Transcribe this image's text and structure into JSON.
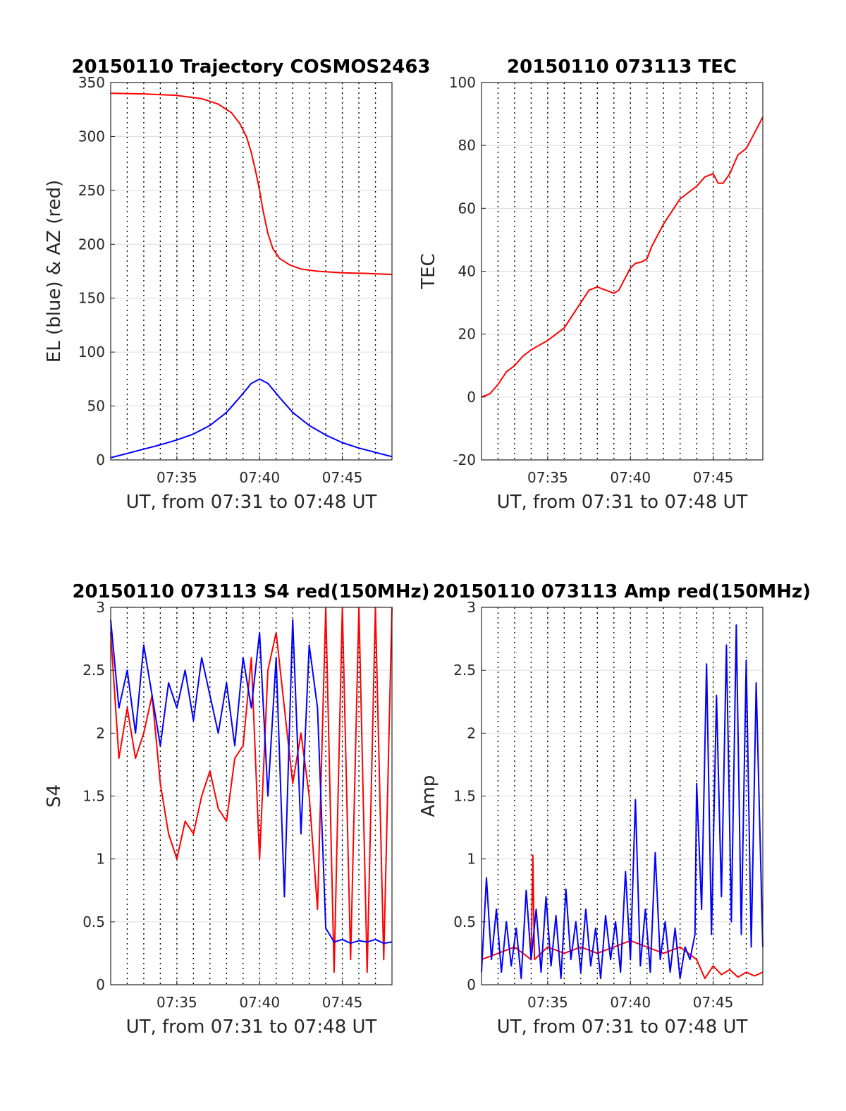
{
  "chart_data": [
    {
      "id": "trajectory",
      "type": "line",
      "title": "20150110 Trajectory COSMOS2463",
      "xlabel": "UT, from 07:31 to 07:48 UT",
      "ylabel": "EL (blue) & AZ (red)",
      "x_unit": "minutes since 07:31 UT",
      "xlim": [
        0,
        17
      ],
      "ylim": [
        0,
        350
      ],
      "yticks": [
        0,
        50,
        100,
        150,
        200,
        250,
        300,
        350
      ],
      "xticks": [
        {
          "x": 4,
          "label": "07:35"
        },
        {
          "x": 9,
          "label": "07:40"
        },
        {
          "x": 14,
          "label": "07:45"
        }
      ],
      "grid": true,
      "series": [
        {
          "color": "#ff0000",
          "x": [
            0,
            2,
            4,
            5.5,
            6.5,
            7.3,
            7.8,
            8.2,
            8.5,
            8.8,
            9.0,
            9.2,
            9.5,
            9.8,
            10.2,
            10.8,
            11.5,
            12.5,
            14,
            15.5,
            17
          ],
          "y": [
            340,
            339.5,
            338,
            335,
            330,
            322,
            312,
            300,
            285,
            265,
            250,
            232,
            210,
            196,
            187,
            181,
            177,
            175,
            173.5,
            173,
            172
          ]
        },
        {
          "color": "#0000ff",
          "x": [
            0,
            1,
            2,
            3,
            4,
            5,
            6,
            7,
            7.8,
            8.5,
            9.0,
            9.5,
            10.2,
            11,
            12,
            13,
            14,
            15,
            16,
            17
          ],
          "y": [
            2,
            6,
            10,
            14,
            18.5,
            24,
            32,
            44,
            58,
            71,
            75,
            71,
            58,
            44,
            32,
            23,
            16,
            11,
            7,
            3
          ]
        }
      ]
    },
    {
      "id": "tec",
      "type": "line",
      "title": "20150110 073113 TEC",
      "xlabel": "UT, from 07:31 to 07:48 UT",
      "ylabel": "TEC",
      "x_unit": "minutes since 07:31 UT",
      "xlim": [
        0,
        17
      ],
      "ylim": [
        -20,
        100
      ],
      "yticks": [
        -20,
        0,
        20,
        40,
        60,
        80,
        100
      ],
      "xticks": [
        {
          "x": 4,
          "label": "07:35"
        },
        {
          "x": 9,
          "label": "07:40"
        },
        {
          "x": 14,
          "label": "07:45"
        }
      ],
      "grid": true,
      "series": [
        {
          "color": "#ff0000",
          "x": [
            0,
            0.5,
            1,
            1.5,
            2,
            2.5,
            3,
            4,
            4.5,
            5,
            5.5,
            6,
            6.5,
            7,
            7.5,
            8,
            8.3,
            8.5,
            8.8,
            9,
            9.3,
            9.7,
            10,
            10.3,
            10.7,
            11,
            11.5,
            12,
            12.5,
            13,
            13.5,
            14,
            14.3,
            14.6,
            15,
            15.5,
            16,
            16.5,
            17
          ],
          "y": [
            0,
            1,
            4,
            8,
            10,
            13,
            15,
            18,
            20,
            22,
            26,
            30,
            34,
            35,
            34,
            33,
            34,
            36,
            39,
            41,
            42.5,
            43,
            44,
            48,
            52,
            55,
            59,
            63,
            65,
            67,
            70,
            71,
            68,
            68,
            71,
            77,
            79,
            84,
            89
          ]
        }
      ]
    },
    {
      "id": "s4",
      "type": "line",
      "title": "20150110 073113 S4 red(150MHz)",
      "xlabel": "UT, from 07:31 to 07:48 UT",
      "ylabel": "S4",
      "x_unit": "minutes since 07:31 UT",
      "xlim": [
        0,
        17
      ],
      "ylim": [
        0,
        3
      ],
      "yticks": [
        0,
        0.5,
        1,
        1.5,
        2,
        2.5,
        3
      ],
      "ytick_labels": [
        "0",
        "0.5",
        "1",
        "1.5",
        "2",
        "2.5",
        "3"
      ],
      "xticks": [
        {
          "x": 4,
          "label": "07:35"
        },
        {
          "x": 9,
          "label": "07:40"
        },
        {
          "x": 14,
          "label": "07:45"
        }
      ],
      "grid": true,
      "series": [
        {
          "color": "#ff0000",
          "x": [
            0,
            0.5,
            1,
            1.5,
            2,
            2.5,
            3,
            3.5,
            4,
            4.5,
            5,
            5.5,
            6,
            6.5,
            7,
            7.5,
            8,
            8.5,
            9,
            9.5,
            10,
            10.5,
            11,
            11.5,
            12,
            12.5,
            13,
            13.5,
            14,
            14.5,
            15,
            15.5,
            16,
            16.5,
            17
          ],
          "y": [
            2.8,
            1.8,
            2.2,
            1.8,
            2.0,
            2.3,
            1.6,
            1.2,
            1.0,
            1.3,
            1.2,
            1.5,
            1.7,
            1.4,
            1.3,
            1.8,
            1.9,
            2.6,
            1.0,
            2.5,
            2.8,
            2.2,
            1.6,
            2.0,
            1.5,
            0.6,
            3.0,
            0.1,
            3.0,
            0.2,
            3.0,
            0.1,
            3.0,
            0.2,
            3.0
          ]
        },
        {
          "color": "#0000ff",
          "x": [
            0,
            0.5,
            1,
            1.5,
            2,
            2.5,
            3,
            3.5,
            4,
            4.5,
            5,
            5.5,
            6,
            6.5,
            7,
            7.5,
            8,
            8.5,
            9,
            9.5,
            10,
            10.5,
            11,
            11.5,
            12,
            12.5,
            13,
            13.5,
            14,
            14.5,
            15,
            15.5,
            16,
            16.5,
            17
          ],
          "y": [
            2.9,
            2.2,
            2.5,
            2.0,
            2.7,
            2.3,
            1.9,
            2.4,
            2.2,
            2.5,
            2.1,
            2.6,
            2.3,
            2.0,
            2.4,
            1.9,
            2.6,
            2.2,
            2.8,
            1.5,
            2.6,
            0.7,
            2.9,
            1.2,
            2.7,
            2.2,
            0.45,
            0.34,
            0.36,
            0.33,
            0.35,
            0.34,
            0.36,
            0.33,
            0.34
          ]
        }
      ]
    },
    {
      "id": "amp",
      "type": "line",
      "title": "20150110 073113 Amp red(150MHz)",
      "xlabel": "UT, from 07:31 to 07:48 UT",
      "ylabel": "Amp",
      "x_unit": "minutes since 07:31 UT",
      "xlim": [
        0,
        17
      ],
      "ylim": [
        0,
        3
      ],
      "yticks": [
        0,
        0.5,
        1,
        1.5,
        2,
        2.5,
        3
      ],
      "ytick_labels": [
        "0",
        "0.5",
        "1",
        "1.5",
        "2",
        "2.5",
        "3"
      ],
      "xticks": [
        {
          "x": 4,
          "label": "07:35"
        },
        {
          "x": 9,
          "label": "07:40"
        },
        {
          "x": 14,
          "label": "07:45"
        }
      ],
      "grid": true,
      "series": [
        {
          "color": "#ff0000",
          "x": [
            0,
            1,
            2,
            3,
            3.1,
            3.2,
            4,
            5,
            6,
            7,
            8,
            9,
            10,
            11,
            12,
            13,
            13.5,
            14,
            14.5,
            15,
            15.5,
            16,
            16.5,
            17
          ],
          "y": [
            0.2,
            0.25,
            0.3,
            0.2,
            1.03,
            0.2,
            0.3,
            0.25,
            0.3,
            0.25,
            0.3,
            0.35,
            0.3,
            0.25,
            0.3,
            0.2,
            0.05,
            0.15,
            0.08,
            0.12,
            0.06,
            0.1,
            0.07,
            0.1
          ]
        },
        {
          "color": "#0000ff",
          "x": [
            0,
            0.3,
            0.6,
            0.9,
            1.2,
            1.5,
            1.8,
            2.1,
            2.4,
            2.7,
            3.0,
            3.3,
            3.6,
            3.9,
            4.2,
            4.5,
            4.8,
            5.1,
            5.4,
            5.7,
            6.0,
            6.3,
            6.6,
            6.9,
            7.2,
            7.5,
            7.8,
            8.1,
            8.4,
            8.7,
            9.0,
            9.3,
            9.6,
            9.9,
            10.2,
            10.5,
            10.8,
            11.1,
            11.4,
            11.7,
            12.0,
            12.3,
            12.6,
            12.9,
            13.0,
            13.3,
            13.6,
            13.9,
            14.2,
            14.5,
            14.8,
            15.1,
            15.4,
            15.7,
            16.0,
            16.3,
            16.6,
            17
          ],
          "y": [
            0.1,
            0.85,
            0.2,
            0.6,
            0.1,
            0.5,
            0.15,
            0.45,
            0.05,
            0.75,
            0.2,
            0.6,
            0.1,
            0.7,
            0.15,
            0.55,
            0.05,
            0.76,
            0.2,
            0.5,
            0.1,
            0.6,
            0.15,
            0.45,
            0.05,
            0.55,
            0.2,
            0.5,
            0.1,
            0.9,
            0.2,
            1.47,
            0.15,
            0.6,
            0.1,
            1.05,
            0.2,
            0.5,
            0.1,
            0.45,
            0.05,
            0.3,
            0.2,
            0.4,
            1.6,
            0.6,
            2.55,
            0.4,
            2.3,
            0.7,
            2.7,
            0.5,
            2.86,
            0.4,
            2.58,
            0.3,
            2.4,
            0.3
          ]
        }
      ]
    }
  ]
}
